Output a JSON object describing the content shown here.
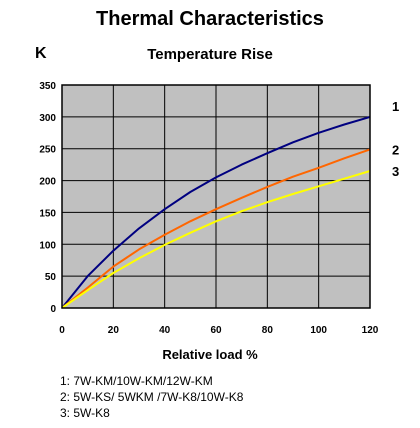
{
  "chart_data": {
    "type": "line",
    "title": "Thermal Characteristics",
    "subtitle": "Temperature Rise",
    "ylabel": "K",
    "xlabel": "Relative load %",
    "xlim": [
      0,
      120
    ],
    "ylim": [
      0,
      350
    ],
    "xticks": [
      0,
      20,
      40,
      60,
      80,
      100,
      120
    ],
    "yticks": [
      0,
      50,
      100,
      150,
      200,
      250,
      300,
      350
    ],
    "grid": true,
    "plot_background": "#c0c0c0",
    "series": [
      {
        "name": "1",
        "color": "#000080",
        "x": [
          0,
          10,
          20,
          30,
          40,
          50,
          60,
          70,
          80,
          90,
          100,
          110,
          120
        ],
        "y": [
          0,
          50,
          90,
          125,
          155,
          182,
          205,
          225,
          243,
          260,
          275,
          288,
          300
        ]
      },
      {
        "name": "2",
        "color": "#ff6600",
        "x": [
          0,
          10,
          20,
          30,
          40,
          50,
          60,
          70,
          80,
          90,
          100,
          110,
          120
        ],
        "y": [
          0,
          32,
          65,
          92,
          115,
          136,
          155,
          173,
          190,
          206,
          220,
          235,
          249
        ]
      },
      {
        "name": "3",
        "color": "#ffff00",
        "x": [
          0,
          10,
          20,
          30,
          40,
          50,
          60,
          70,
          80,
          90,
          100,
          110,
          120
        ],
        "y": [
          0,
          28,
          55,
          78,
          99,
          118,
          136,
          152,
          166,
          179,
          191,
          203,
          215
        ]
      }
    ]
  },
  "legend": [
    "1: 7W-KM/10W-KM/12W-KM",
    "2: 5W-KS/ 5WKM /7W-K8/10W-K8",
    "3: 5W-K8"
  ]
}
